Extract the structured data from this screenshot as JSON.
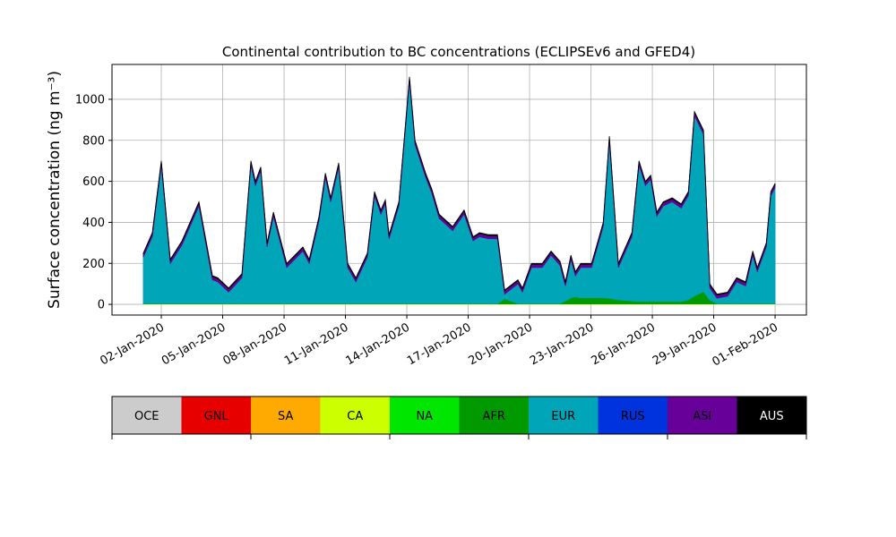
{
  "chart_data": {
    "type": "stacked_area",
    "title": "Continental contribution to BC concentrations (ECLIPSEv6 and GFED4)",
    "y_label": "Surface concentration (ng m⁻³)",
    "x": [
      1.12,
      1.56,
      2.0,
      2.44,
      3.01,
      3.84,
      4.5,
      4.76,
      5.29,
      5.94,
      6.38,
      6.6,
      6.86,
      7.17,
      7.48,
      8.13,
      8.92,
      9.23,
      9.71,
      10.02,
      10.28,
      10.67,
      11.11,
      11.51,
      12.07,
      12.42,
      12.73,
      12.95,
      13.13,
      13.61,
      14.13,
      14.4,
      14.92,
      15.23,
      15.58,
      16.24,
      16.8,
      17.24,
      17.55,
      17.99,
      18.43,
      18.78,
      19.43,
      19.65,
      20.09,
      20.62,
      21.05,
      21.49,
      21.75,
      22.02,
      22.24,
      22.5,
      23.03,
      23.6,
      23.9,
      24.34,
      25.0,
      25.35,
      25.66,
      25.92,
      26.22,
      26.53,
      26.97,
      27.41,
      27.76,
      28.06,
      28.5,
      28.81,
      29.16,
      29.68,
      30.12,
      30.56,
      30.91,
      31.13,
      31.57,
      31.79,
      32.0
    ],
    "series": [
      {
        "name": "CA",
        "color": "#ccff00",
        "values": [
          2,
          2,
          2,
          2,
          2,
          2,
          2,
          2,
          2,
          2,
          2,
          2,
          2,
          2,
          2,
          2,
          2,
          2,
          2,
          2,
          2,
          2,
          2,
          2,
          2,
          2,
          2,
          2,
          2,
          2,
          2,
          2,
          2,
          2,
          2,
          2,
          2,
          2,
          2,
          2,
          2,
          2,
          2,
          2,
          2,
          2,
          2,
          2,
          2,
          2,
          2,
          2,
          2,
          2,
          2,
          2,
          2,
          2,
          2,
          2,
          2,
          2,
          2,
          2,
          2,
          2,
          2,
          2,
          2,
          2,
          2,
          2,
          2,
          2,
          2,
          2,
          2
        ]
      },
      {
        "name": "AFR",
        "color": "#009900",
        "values": [
          2,
          2,
          2,
          2,
          2,
          2,
          2,
          2,
          2,
          2,
          2,
          2,
          2,
          2,
          2,
          2,
          2,
          2,
          2,
          2,
          2,
          2,
          2,
          2,
          2,
          2,
          2,
          2,
          2,
          2,
          2,
          2,
          2,
          2,
          2,
          2,
          2,
          2,
          2,
          2,
          2,
          25,
          2,
          2,
          2,
          2,
          2,
          2,
          15,
          30,
          35,
          30,
          30,
          30,
          28,
          20,
          15,
          12,
          12,
          12,
          12,
          12,
          12,
          12,
          20,
          40,
          60,
          20,
          2,
          2,
          2,
          2,
          2,
          2,
          2,
          2,
          2
        ]
      },
      {
        "name": "EUR",
        "color": "#00a5b8",
        "values": [
          226,
          326,
          676,
          196,
          286,
          476,
          116,
          106,
          56,
          126,
          676,
          576,
          646,
          276,
          426,
          176,
          256,
          196,
          406,
          616,
          496,
          666,
          176,
          106,
          226,
          526,
          436,
          486,
          316,
          476,
          1086,
          776,
          616,
          536,
          416,
          356,
          436,
          306,
          326,
          316,
          316,
          23,
          96,
          56,
          176,
          176,
          236,
          186,
          73,
          188,
          103,
          148,
          148,
          348,
          770,
          158,
          313,
          666,
          566,
          596,
          416,
          466,
          486,
          456,
          508,
          878,
          768,
          58,
          26,
          36,
          106,
          86,
          236,
          156,
          276,
          526,
          566
        ]
      },
      {
        "name": "ASI",
        "color": "#660099",
        "values": [
          15,
          15,
          15,
          15,
          15,
          15,
          15,
          15,
          15,
          15,
          15,
          15,
          15,
          15,
          15,
          15,
          15,
          15,
          15,
          15,
          15,
          15,
          15,
          15,
          15,
          15,
          15,
          15,
          15,
          15,
          15,
          15,
          15,
          15,
          15,
          15,
          15,
          15,
          15,
          15,
          15,
          15,
          15,
          15,
          15,
          15,
          15,
          15,
          15,
          15,
          15,
          15,
          15,
          15,
          15,
          15,
          15,
          15,
          15,
          15,
          15,
          15,
          15,
          15,
          15,
          15,
          15,
          15,
          15,
          15,
          15,
          15,
          15,
          15,
          15,
          15,
          15
        ]
      },
      {
        "name": "AUS",
        "color": "#000000",
        "values": [
          5,
          5,
          5,
          5,
          5,
          5,
          5,
          5,
          5,
          5,
          5,
          5,
          5,
          5,
          5,
          5,
          5,
          5,
          5,
          5,
          5,
          5,
          5,
          5,
          5,
          5,
          5,
          5,
          5,
          5,
          5,
          5,
          5,
          5,
          5,
          5,
          5,
          5,
          5,
          5,
          5,
          5,
          5,
          5,
          5,
          5,
          5,
          5,
          5,
          5,
          5,
          5,
          5,
          5,
          5,
          5,
          5,
          5,
          5,
          5,
          5,
          5,
          5,
          5,
          5,
          5,
          5,
          5,
          5,
          5,
          5,
          5,
          5,
          5,
          5,
          5,
          5
        ]
      }
    ],
    "xlim": [
      -0.41,
      33.53
    ],
    "xticks": [
      {
        "value": 2,
        "label": "02-Jan-2020"
      },
      {
        "value": 5,
        "label": "05-Jan-2020"
      },
      {
        "value": 8,
        "label": "08-Jan-2020"
      },
      {
        "value": 11,
        "label": "11-Jan-2020"
      },
      {
        "value": 14,
        "label": "14-Jan-2020"
      },
      {
        "value": 17,
        "label": "17-Jan-2020"
      },
      {
        "value": 20,
        "label": "20-Jan-2020"
      },
      {
        "value": 23,
        "label": "23-Jan-2020"
      },
      {
        "value": 26,
        "label": "26-Jan-2020"
      },
      {
        "value": 29,
        "label": "29-Jan-2020"
      },
      {
        "value": 32,
        "label": "01-Feb-2020"
      }
    ],
    "ylim": [
      -52,
      1170
    ],
    "yticks": [
      0,
      200,
      400,
      600,
      800,
      1000
    ],
    "grid": true,
    "colorbar": {
      "labels": [
        "OCE",
        "GNL",
        "SA",
        "CA",
        "NA",
        "AFR",
        "EUR",
        "RUS",
        "ASI",
        "AUS"
      ],
      "colors": [
        "#cccccc",
        "#e60000",
        "#ffaa00",
        "#ccff00",
        "#00e600",
        "#009900",
        "#00a5b8",
        "#0033dd",
        "#660099",
        "#000000"
      ]
    }
  }
}
